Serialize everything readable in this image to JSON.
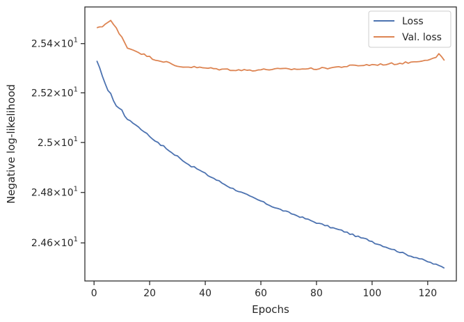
{
  "chart_data": {
    "type": "line",
    "title": "",
    "xlabel": "Epochs",
    "ylabel": "Negative log-likelihood",
    "y_scale": "log",
    "xlim": [
      -3.3,
      130.3
    ],
    "ylim": [
      24.45,
      25.55
    ],
    "x_ticks": [
      0,
      20,
      40,
      60,
      80,
      100,
      120
    ],
    "y_ticks": [
      {
        "mantissa": "2.46",
        "exponent": "1",
        "value": 24.6
      },
      {
        "mantissa": "2.48",
        "exponent": "1",
        "value": 24.8
      },
      {
        "mantissa": "2.5",
        "exponent": "1",
        "value": 25.0
      },
      {
        "mantissa": "2.52",
        "exponent": "1",
        "value": 25.2
      },
      {
        "mantissa": "2.54",
        "exponent": "1",
        "value": 25.4
      }
    ],
    "grid": false,
    "legend_position": "upper right",
    "series": [
      {
        "name": "Loss",
        "color": "#4c72b0",
        "x": [
          1,
          2,
          3,
          4,
          5,
          6,
          7,
          8,
          9,
          10,
          11,
          12,
          13,
          14,
          15,
          16,
          17,
          18,
          19,
          20,
          21,
          22,
          23,
          24,
          25,
          26,
          27,
          28,
          29,
          30,
          31,
          32,
          33,
          34,
          35,
          36,
          37,
          38,
          39,
          40,
          41,
          42,
          43,
          44,
          45,
          46,
          47,
          48,
          49,
          50,
          51,
          52,
          53,
          54,
          55,
          56,
          57,
          58,
          59,
          60,
          61,
          62,
          63,
          64,
          65,
          66,
          67,
          68,
          69,
          70,
          71,
          72,
          73,
          74,
          75,
          76,
          77,
          78,
          79,
          80,
          81,
          82,
          83,
          84,
          85,
          86,
          87,
          88,
          89,
          90,
          91,
          92,
          93,
          94,
          95,
          96,
          97,
          98,
          99,
          100,
          101,
          102,
          103,
          104,
          105,
          106,
          107,
          108,
          109,
          110,
          111,
          112,
          113,
          114,
          115,
          116,
          117,
          118,
          119,
          120,
          121,
          122,
          123,
          124,
          125,
          126
        ],
        "values": [
          25.33,
          25.3,
          25.265,
          25.24,
          25.21,
          25.195,
          25.17,
          25.148,
          25.138,
          25.13,
          25.108,
          25.095,
          25.085,
          25.078,
          25.072,
          25.062,
          25.052,
          25.045,
          25.035,
          25.025,
          25.015,
          25.008,
          24.998,
          24.99,
          24.985,
          24.975,
          24.968,
          24.958,
          24.95,
          24.945,
          24.935,
          24.928,
          24.92,
          24.912,
          24.905,
          24.9,
          24.895,
          24.888,
          24.882,
          24.875,
          24.868,
          24.862,
          24.857,
          24.85,
          24.845,
          24.838,
          24.832,
          24.826,
          24.82,
          24.815,
          24.81,
          24.805,
          24.8,
          24.795,
          24.79,
          24.784,
          24.78,
          24.775,
          24.77,
          24.766,
          24.76,
          24.755,
          24.75,
          24.745,
          24.74,
          24.736,
          24.732,
          24.728,
          24.724,
          24.72,
          24.716,
          24.712,
          24.708,
          24.704,
          24.7,
          24.696,
          24.692,
          24.688,
          24.684,
          24.68,
          24.676,
          24.673,
          24.67,
          24.666,
          24.662,
          24.659,
          24.655,
          24.652,
          24.649,
          24.645,
          24.641,
          24.636,
          24.632,
          24.628,
          24.624,
          24.62,
          24.617,
          24.614,
          24.61,
          24.606,
          24.6,
          24.596,
          24.592,
          24.588,
          24.584,
          24.58,
          24.576,
          24.572,
          24.568,
          24.564,
          24.56,
          24.556,
          24.552,
          24.548,
          24.545,
          24.542,
          24.538,
          24.534,
          24.53,
          24.526,
          24.522,
          24.518,
          24.514,
          24.51,
          24.506,
          24.502
        ],
        "jitter": 0.006
      },
      {
        "name": "Val. loss",
        "color": "#dd8452",
        "x": [
          1,
          2,
          3,
          4,
          5,
          6,
          7,
          8,
          9,
          10,
          11,
          12,
          13,
          14,
          15,
          16,
          17,
          18,
          19,
          20,
          21,
          22,
          23,
          24,
          25,
          26,
          27,
          28,
          29,
          30,
          31,
          32,
          33,
          34,
          35,
          36,
          37,
          38,
          39,
          40,
          41,
          42,
          43,
          44,
          45,
          46,
          47,
          48,
          49,
          50,
          51,
          52,
          53,
          54,
          55,
          56,
          57,
          58,
          59,
          60,
          61,
          62,
          63,
          64,
          65,
          66,
          67,
          68,
          69,
          70,
          71,
          72,
          73,
          74,
          75,
          76,
          77,
          78,
          79,
          80,
          81,
          82,
          83,
          84,
          85,
          86,
          87,
          88,
          89,
          90,
          91,
          92,
          93,
          94,
          95,
          96,
          97,
          98,
          99,
          100,
          101,
          102,
          103,
          104,
          105,
          106,
          107,
          108,
          109,
          110,
          111,
          112,
          113,
          114,
          115,
          116,
          117,
          118,
          119,
          120,
          121,
          122,
          123,
          124,
          125,
          126
        ],
        "values": [
          25.465,
          25.465,
          25.47,
          25.48,
          25.49,
          25.495,
          25.478,
          25.462,
          25.44,
          25.425,
          25.405,
          25.385,
          25.378,
          25.375,
          25.37,
          25.366,
          25.36,
          25.355,
          25.35,
          25.345,
          25.34,
          25.336,
          25.332,
          25.33,
          25.328,
          25.325,
          25.32,
          25.315,
          25.31,
          25.308,
          25.307,
          25.306,
          25.306,
          25.305,
          25.305,
          25.304,
          25.303,
          25.302,
          25.301,
          25.3,
          25.3,
          25.299,
          25.298,
          25.297,
          25.296,
          25.296,
          25.295,
          25.295,
          25.294,
          25.294,
          25.293,
          25.293,
          25.292,
          25.292,
          25.292,
          25.292,
          25.292,
          25.293,
          25.293,
          25.294,
          25.294,
          25.295,
          25.295,
          25.296,
          25.296,
          25.296,
          25.296,
          25.296,
          25.296,
          25.296,
          25.296,
          25.296,
          25.296,
          25.297,
          25.297,
          25.297,
          25.298,
          25.298,
          25.298,
          25.298,
          25.299,
          25.299,
          25.3,
          25.301,
          25.302,
          25.303,
          25.304,
          25.305,
          25.306,
          25.307,
          25.308,
          25.309,
          25.31,
          25.31,
          25.311,
          25.312,
          25.312,
          25.313,
          25.313,
          25.314,
          25.314,
          25.315,
          25.315,
          25.316,
          25.316,
          25.317,
          25.318,
          25.318,
          25.319,
          25.32,
          25.321,
          25.322,
          25.323,
          25.324,
          25.326,
          25.328,
          25.33,
          25.332,
          25.334,
          25.336,
          25.338,
          25.34,
          25.342,
          25.36,
          25.345,
          25.33
        ],
        "jitter": 0.008
      }
    ]
  }
}
